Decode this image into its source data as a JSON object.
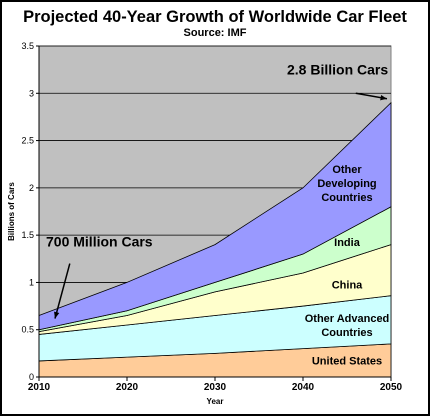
{
  "chart_data": {
    "type": "area",
    "stacked": true,
    "title": "Projected 40-Year Growth of Worldwide Car Fleet",
    "subtitle": "Source: IMF",
    "xlabel": "Year",
    "ylabel": "Billions of Cars",
    "x": [
      2010,
      2020,
      2030,
      2040,
      2050
    ],
    "ylim": [
      0,
      3.5
    ],
    "yticks": [
      "0",
      "0.5",
      "1",
      "1.5",
      "2",
      "2.5",
      "3",
      "3.5"
    ],
    "grid": true,
    "series": [
      {
        "name": "United States",
        "values": [
          0.17,
          0.21,
          0.25,
          0.3,
          0.35
        ],
        "color": "#FFCC99"
      },
      {
        "name": "Other Advanced Countries",
        "values": [
          0.28,
          0.34,
          0.4,
          0.45,
          0.51
        ],
        "color": "#CCFFFF"
      },
      {
        "name": "China",
        "values": [
          0.03,
          0.1,
          0.25,
          0.35,
          0.54
        ],
        "color": "#FFFFCC"
      },
      {
        "name": "India",
        "values": [
          0.02,
          0.05,
          0.1,
          0.2,
          0.4
        ],
        "color": "#CCFFCC"
      },
      {
        "name": "Other Developing Countries",
        "values": [
          0.15,
          0.3,
          0.4,
          0.7,
          1.1
        ],
        "color": "#9999FF"
      }
    ],
    "annotations": {
      "start": "700 Million Cars",
      "end": "2.8 Billion Cars"
    },
    "plot_background": "#C0C0C0"
  }
}
